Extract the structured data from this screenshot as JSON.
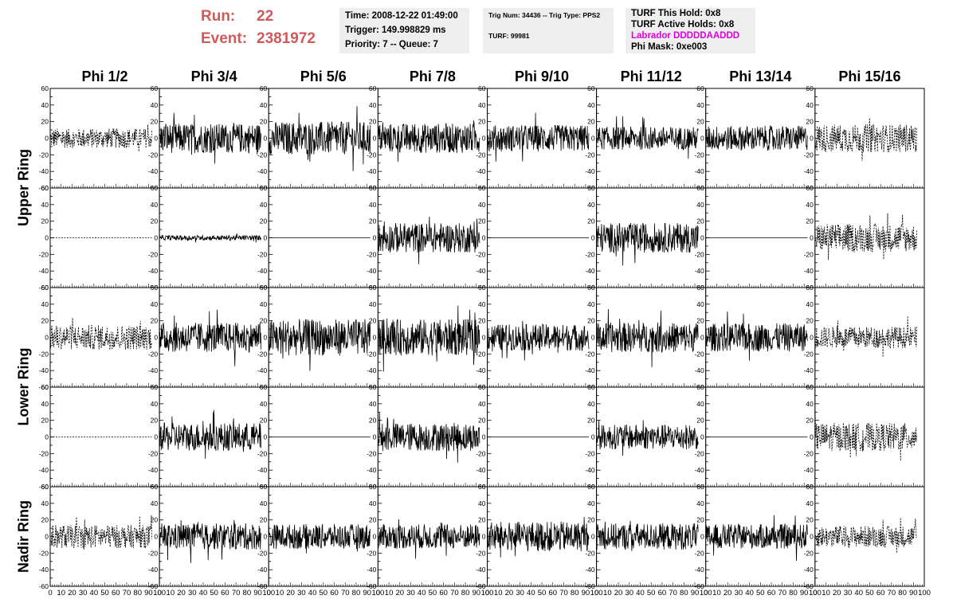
{
  "header": {
    "run_label": "Run:",
    "run_value": "22",
    "event_label": "Event:",
    "event_value": "2381972"
  },
  "info": {
    "time": "Time: 2008-12-22 01:49:00",
    "trigger": "Trigger: 149.998829 ms",
    "priority": "Priority: 7 -- Queue: 7",
    "trig_num": "Trig Num: 34436 -- Trig Type: PPS2",
    "turf": "TURF: 99981",
    "turf_this_hold": "TURF This Hold: 0x8",
    "turf_active_holds": "TURF Active Holds: 0x8",
    "labrador": "Labrador DDDDDAADDD",
    "phi_mask": "Phi Mask: 0xe003"
  },
  "colors": {
    "run_text": "#d05a5a",
    "labrador_text": "#e000e0",
    "info_bg": "#eeeeee",
    "trace": "#000000"
  },
  "chart_data": {
    "type": "line",
    "description_grid": "5 rows x 8 columns of waveform panels",
    "columns": [
      "Phi 1/2",
      "Phi 3/4",
      "Phi 5/6",
      "Phi 7/8",
      "Phi 9/10",
      "Phi 11/12",
      "Phi 13/14",
      "Phi 15/16"
    ],
    "row_labels": [
      "Upper Ring",
      "Lower Ring",
      "Nadir Ring"
    ],
    "row_label_spans": [
      [
        0,
        1
      ],
      [
        2,
        3
      ],
      [
        4,
        4
      ]
    ],
    "xlim": [
      0,
      100
    ],
    "ylim": [
      -60,
      60
    ],
    "x_tick_labels": [
      "0",
      "10",
      "20",
      "30",
      "40",
      "50",
      "60",
      "70",
      "80",
      "90",
      "100"
    ],
    "y_tick_labels": [
      "-60",
      "-40",
      "-20",
      "0",
      "20",
      "40",
      "60"
    ],
    "trace_amplitude_approx": [
      [
        12,
        18,
        20,
        18,
        16,
        14,
        15,
        17
      ],
      [
        0,
        3,
        0,
        18,
        0,
        18,
        0,
        17
      ],
      [
        15,
        18,
        22,
        22,
        16,
        18,
        17,
        13
      ],
      [
        0,
        17,
        0,
        17,
        0,
        15,
        0,
        17
      ],
      [
        14,
        16,
        15,
        15,
        18,
        16,
        15,
        13
      ]
    ],
    "dashed_columns": [
      0,
      7
    ],
    "flat_panels_value": 0
  }
}
